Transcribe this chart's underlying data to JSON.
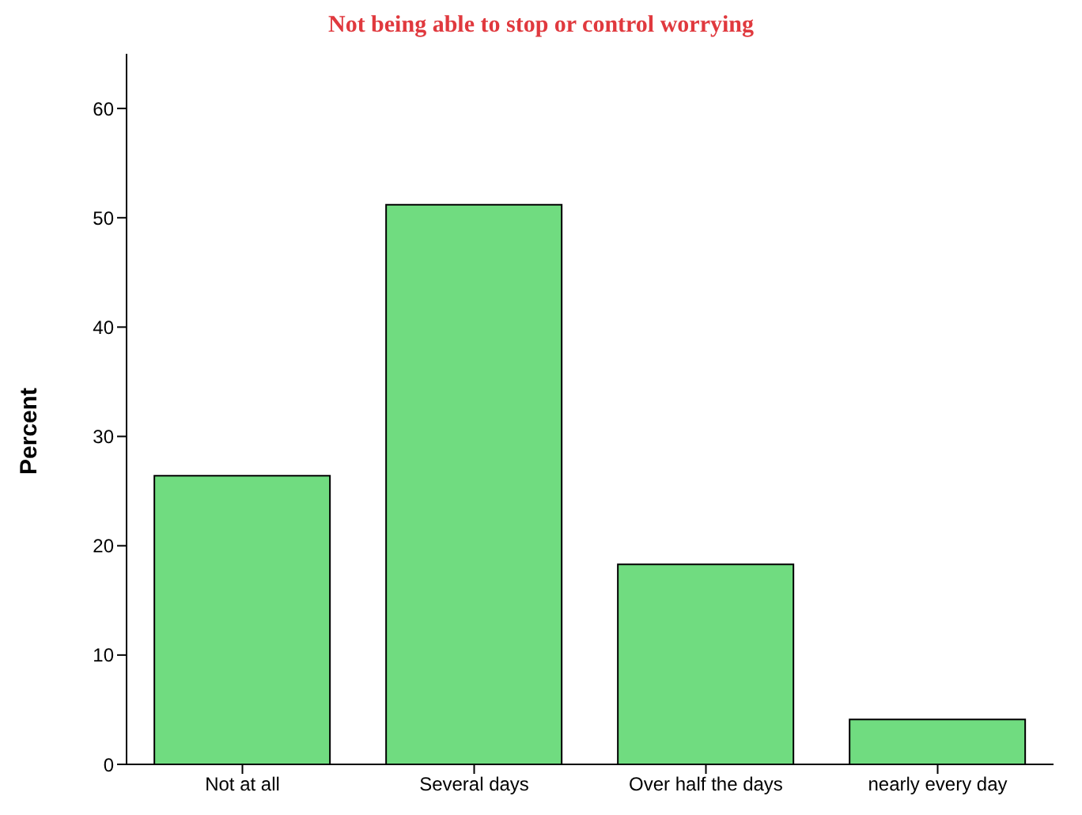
{
  "chart_data": {
    "type": "bar",
    "title": "Not being able to stop or control worrying",
    "ylabel": "Percent",
    "categories": [
      "Not at all",
      "Several days",
      "Over half the days",
      "nearly every day"
    ],
    "values": [
      26.4,
      51.2,
      18.3,
      4.1
    ],
    "color": "#70dc80",
    "ylim": [
      0,
      65
    ],
    "yticks": [
      0,
      10,
      20,
      30,
      40,
      50,
      60
    ],
    "grid": false,
    "legend": false
  }
}
